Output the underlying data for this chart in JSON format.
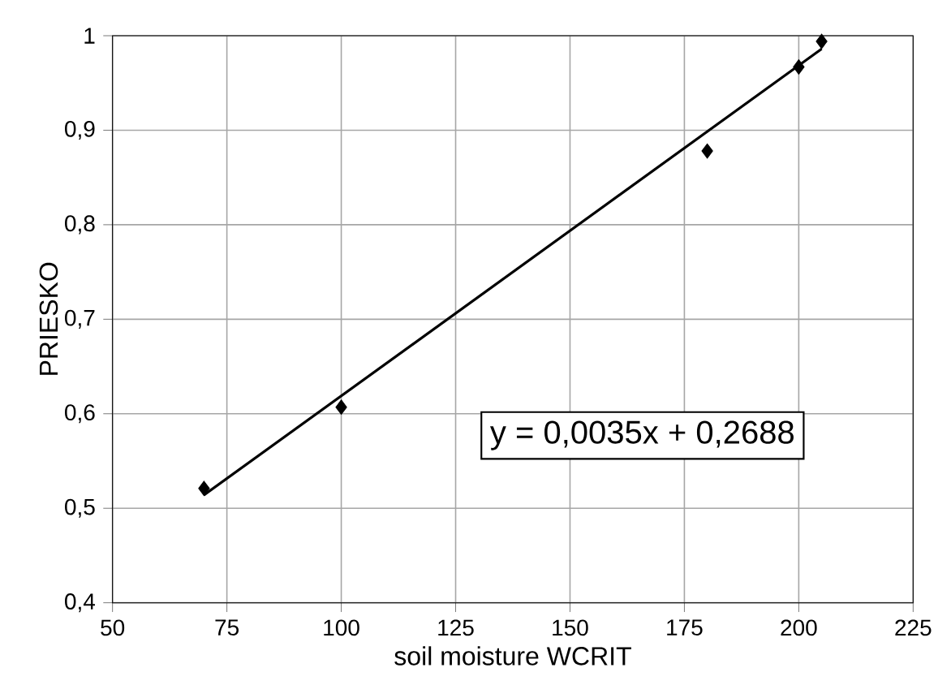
{
  "chart_data": {
    "type": "scatter",
    "xlabel": "soil moisture WCRIT",
    "ylabel": "PRIESKO",
    "xlim": [
      50,
      225
    ],
    "xticks": [
      50,
      75,
      100,
      125,
      150,
      175,
      200,
      225
    ],
    "ylim": [
      0.4,
      1
    ],
    "yticks": [
      {
        "value": 0.4,
        "label": "0,4"
      },
      {
        "value": 0.5,
        "label": "0,5"
      },
      {
        "value": 0.6,
        "label": "0,6"
      },
      {
        "value": 0.7,
        "label": "0,7"
      },
      {
        "value": 0.8,
        "label": "0,8"
      },
      {
        "value": 0.9,
        "label": "0,9"
      },
      {
        "value": 1,
        "label": "1"
      }
    ],
    "grid": true,
    "marker": "diamond",
    "series": [
      {
        "color": "#000000",
        "x": [
          70,
          100,
          180,
          200,
          205
        ],
        "values": [
          0.521,
          0.607,
          0.878,
          0.967,
          0.994
        ]
      },
      {
        "type": "line",
        "color": "#000000",
        "marker": "none",
        "x": [
          70,
          205
        ],
        "values": [
          0.514,
          0.986
        ]
      }
    ],
    "annotations": [
      "y = 0,0035x + 0,2688"
    ]
  }
}
